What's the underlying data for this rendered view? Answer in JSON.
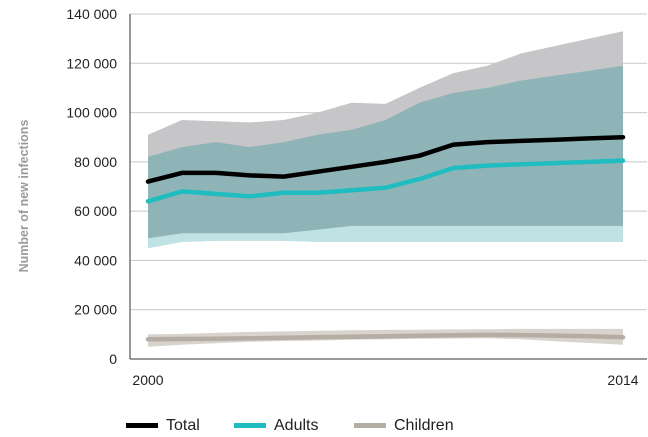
{
  "chart_data": {
    "type": "area",
    "title": "",
    "xlabel": "",
    "ylabel": "Number of new infections",
    "x": [
      2000,
      2001,
      2002,
      2003,
      2004,
      2005,
      2006,
      2007,
      2008,
      2009,
      2010,
      2011,
      2012,
      2013,
      2014
    ],
    "x_tick_labels": [
      "2000",
      "2014"
    ],
    "ylim": [
      0,
      140000
    ],
    "yticks": [
      0,
      20000,
      40000,
      60000,
      80000,
      100000,
      120000,
      140000
    ],
    "ytick_labels": [
      "0",
      "20 000",
      "40 000",
      "60 000",
      "80 000",
      "100 000",
      "120 000",
      "140 000"
    ],
    "grid": "horizontal",
    "legend_position": "bottom",
    "series": [
      {
        "name": "Total",
        "color": "#000000",
        "values": [
          72000,
          75500,
          75500,
          74500,
          74000,
          76000,
          78000,
          80000,
          82500,
          87000,
          88000,
          88500,
          89000,
          89500,
          90000
        ],
        "lower": [
          45000,
          47500,
          48000,
          48000,
          48000,
          47500,
          47500,
          47500,
          47500,
          47500,
          47500,
          47500,
          47500,
          47500,
          47500
        ],
        "upper": [
          91000,
          97000,
          96500,
          96000,
          97000,
          100000,
          104000,
          103500,
          110000,
          116000,
          119000,
          124000,
          127000,
          130000,
          133000
        ]
      },
      {
        "name": "Adults",
        "color": "#1fbcc0",
        "values": [
          64000,
          68000,
          67000,
          66000,
          67500,
          67500,
          68500,
          69500,
          73000,
          77500,
          78500,
          79000,
          79500,
          80000,
          80500
        ],
        "lower": [
          49000,
          51000,
          51000,
          51000,
          51000,
          52500,
          54000,
          54000,
          54000,
          54000,
          54000,
          54000,
          54000,
          54000,
          54000
        ],
        "upper": [
          82000,
          86000,
          88000,
          86000,
          88000,
          91000,
          93000,
          97000,
          104000,
          108000,
          110000,
          113000,
          115000,
          117000,
          119000
        ]
      },
      {
        "name": "Children",
        "color": "#b5aca4",
        "values": [
          8000,
          8100,
          8200,
          8400,
          8600,
          8800,
          9000,
          9200,
          9400,
          9600,
          9800,
          9700,
          9500,
          9200,
          8800
        ],
        "lower": [
          5000,
          5800,
          6400,
          7000,
          7300,
          7500,
          7800,
          8000,
          8200,
          8300,
          8400,
          8000,
          7200,
          6500,
          5800
        ],
        "upper": [
          10000,
          10200,
          10600,
          11000,
          11200,
          11500,
          11700,
          11800,
          11900,
          12000,
          12100,
          12200,
          12200,
          12200,
          12200
        ]
      }
    ],
    "colors": {
      "total_band": "#c6c6c8",
      "adults_band": "#8fb4b8",
      "adults_lower_band": "#bfe3e5",
      "children_band": "#d9d3cd",
      "gridline": "#c8c8c8",
      "axis": "#333333"
    }
  }
}
